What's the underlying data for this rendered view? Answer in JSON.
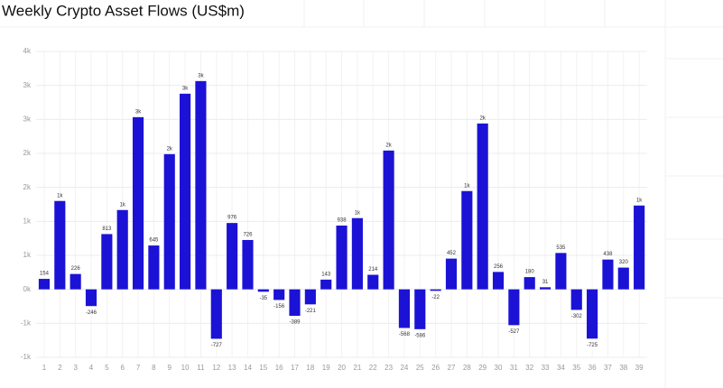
{
  "chart_data": {
    "type": "bar",
    "title": "Weekly Crypto Asset Flows (US$m)",
    "categories": [
      "1",
      "2",
      "3",
      "4",
      "5",
      "6",
      "7",
      "8",
      "9",
      "10",
      "11",
      "12",
      "13",
      "14",
      "15",
      "16",
      "17",
      "18",
      "19",
      "20",
      "21",
      "22",
      "23",
      "24",
      "25",
      "26",
      "27",
      "28",
      "29",
      "30",
      "31",
      "32",
      "33",
      "34",
      "35",
      "36",
      "37",
      "38",
      "39"
    ],
    "values": [
      154,
      1300,
      226,
      -246,
      813,
      1167,
      2533,
      645,
      1989,
      2878,
      3064,
      -727,
      976,
      726,
      -35,
      -156,
      -389,
      -221,
      143,
      938,
      1048,
      214,
      2042,
      -568,
      -586,
      -22,
      452,
      1446,
      2440,
      256,
      -527,
      180,
      31,
      535,
      -302,
      -725,
      438,
      320,
      1233
    ],
    "value_labels": [
      "154",
      "1k",
      "226",
      "-246",
      "813",
      "1k",
      "3k",
      "645",
      "2k",
      "3k",
      "3k",
      "-727",
      "976",
      "726",
      "-35",
      "-156",
      "-389",
      "-221",
      "143",
      "938",
      "1k",
      "214",
      "2k",
      "-568",
      "-586",
      "-22",
      "452",
      "1k",
      "2k",
      "256",
      "-527",
      "180",
      "31",
      "535",
      "-302",
      "-725",
      "438",
      "320",
      "1k"
    ],
    "color": "#1b12d6",
    "ylim": [
      -1000,
      3500
    ],
    "yticks": [
      {
        "value": -1000,
        "label": "-1k"
      },
      {
        "value": -500,
        "label": "-1k"
      },
      {
        "value": 0,
        "label": "0k"
      },
      {
        "value": 500,
        "label": "1k"
      },
      {
        "value": 1000,
        "label": "1k"
      },
      {
        "value": 1500,
        "label": "2k"
      },
      {
        "value": 2000,
        "label": "2k"
      },
      {
        "value": 2500,
        "label": "3k"
      },
      {
        "value": 3000,
        "label": "3k"
      },
      {
        "value": 3500,
        "label": "4k"
      }
    ],
    "grid": true
  }
}
